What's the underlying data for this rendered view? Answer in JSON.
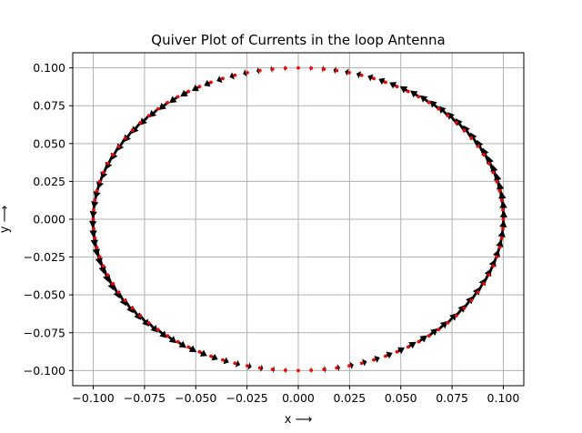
{
  "chart_data": {
    "type": "quiver",
    "title": "Quiver Plot of Currents in the loop Antenna",
    "xlabel": "x ⟶",
    "ylabel": "y ⟶",
    "xlim": [
      -0.11,
      0.11
    ],
    "ylim": [
      -0.11,
      0.11
    ],
    "xticks": [
      -0.1,
      -0.075,
      -0.05,
      -0.025,
      0.0,
      0.025,
      0.05,
      0.075,
      0.1
    ],
    "xtick_labels": [
      "−0.100",
      "−0.075",
      "−0.050",
      "−0.025",
      "0.000",
      "0.025",
      "0.050",
      "0.075",
      "0.100"
    ],
    "yticks": [
      -0.1,
      -0.075,
      -0.05,
      -0.025,
      0.0,
      0.025,
      0.05,
      0.075,
      0.1
    ],
    "ytick_labels": [
      "−0.100",
      "−0.075",
      "−0.050",
      "−0.025",
      "0.000",
      "0.025",
      "0.050",
      "0.075",
      "0.100"
    ],
    "grid": true,
    "loop_radius": 0.1,
    "n_points": 100,
    "current_distribution": "|cos(phi)|, tangential (counter-clockwise)",
    "point_color": "#ff0000",
    "arrow_color": "#000000",
    "grid_color": "#b0b0b0"
  }
}
